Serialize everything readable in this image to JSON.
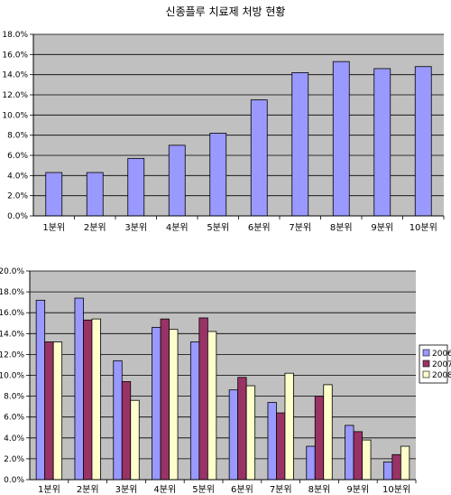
{
  "title": "신종플루 치료제 처방 현황",
  "colors": {
    "plot_bg": "#c0c0c0",
    "bar1": "#9999ff",
    "series_2006": "#9999ff",
    "series_2007": "#993366",
    "series_2008": "#ffffcc"
  },
  "chart_data": [
    {
      "type": "bar",
      "categories": [
        "1분위",
        "2분위",
        "3분위",
        "4분위",
        "5분위",
        "6분위",
        "7분위",
        "8분위",
        "9분위",
        "10분위"
      ],
      "values": [
        4.3,
        4.3,
        5.7,
        7.0,
        8.2,
        11.5,
        14.2,
        15.3,
        14.6,
        14.8
      ],
      "yticks": [
        "0.0%",
        "2.0%",
        "4.0%",
        "6.0%",
        "8.0%",
        "10.0%",
        "12.0%",
        "14.0%",
        "16.0%",
        "18.0%"
      ],
      "ylim": [
        0,
        18
      ],
      "grid": true,
      "legend": "none"
    },
    {
      "type": "bar",
      "categories": [
        "1분위",
        "2분위",
        "3분위",
        "4분위",
        "5분위",
        "6분위",
        "7분위",
        "8분위",
        "9분위",
        "10분위"
      ],
      "series": [
        {
          "name": "2006",
          "values": [
            17.2,
            17.4,
            11.4,
            14.6,
            13.2,
            8.6,
            7.4,
            3.2,
            5.2,
            1.7
          ]
        },
        {
          "name": "2007",
          "values": [
            13.2,
            15.3,
            9.4,
            15.4,
            15.5,
            9.8,
            6.4,
            8.0,
            4.6,
            2.4
          ]
        },
        {
          "name": "2008",
          "values": [
            13.2,
            15.4,
            7.6,
            14.4,
            14.2,
            9.0,
            10.2,
            9.1,
            3.8,
            3.2
          ]
        }
      ],
      "yticks": [
        "0.0%",
        "2.0%",
        "4.0%",
        "6.0%",
        "8.0%",
        "10.0%",
        "12.0%",
        "14.0%",
        "16.0%",
        "18.0%",
        "20.0%"
      ],
      "ylim": [
        0,
        20
      ],
      "grid": true,
      "legend": "right"
    }
  ]
}
